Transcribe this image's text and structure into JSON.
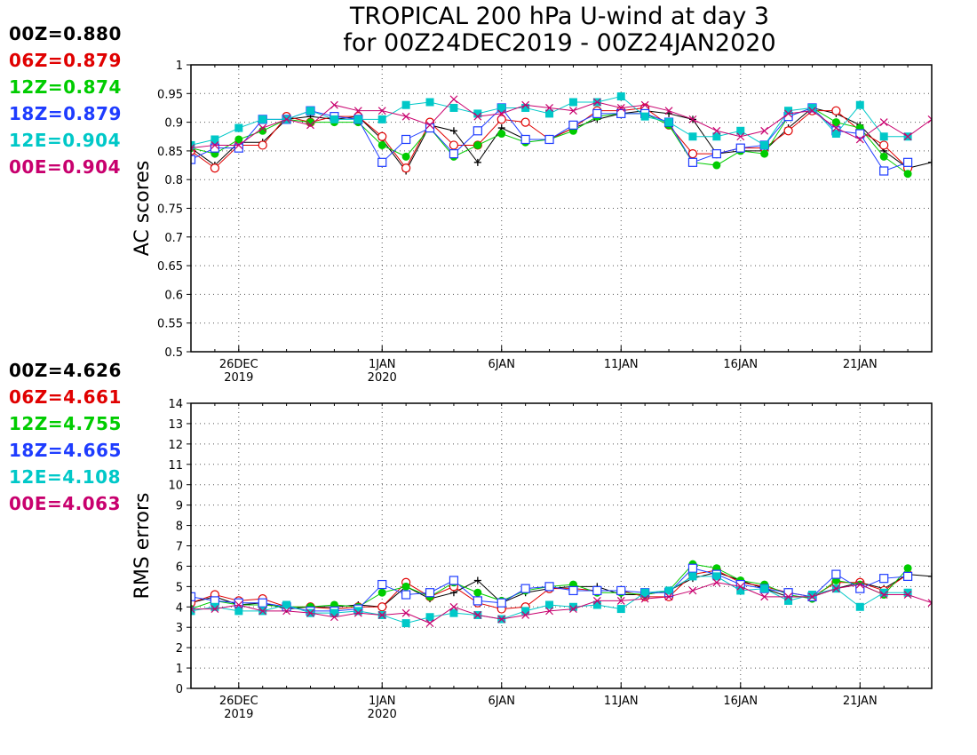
{
  "title": {
    "line1": "TROPICAL 200 hPa U-wind at day 3",
    "line2": "for 00Z24DEC2019 - 00Z24JAN2020"
  },
  "series_styles": [
    {
      "name": "00Z",
      "color": "#000000",
      "marker": "plus"
    },
    {
      "name": "06Z",
      "color": "#e00000",
      "marker": "open-circle"
    },
    {
      "name": "12Z",
      "color": "#00cc00",
      "marker": "filled-circle"
    },
    {
      "name": "18Z",
      "color": "#1e3cff",
      "marker": "open-square"
    },
    {
      "name": "12E",
      "color": "#00c8c8",
      "marker": "filled-square"
    },
    {
      "name": "00E",
      "color": "#c8006e",
      "marker": "x"
    }
  ],
  "x_ticks": [
    {
      "day": 2,
      "label": "26DEC",
      "year": "2019"
    },
    {
      "day": 8,
      "label": "1JAN",
      "year": "2020"
    },
    {
      "day": 13,
      "label": "6JAN",
      "year": ""
    },
    {
      "day": 18,
      "label": "11JAN",
      "year": ""
    },
    {
      "day": 23,
      "label": "16JAN",
      "year": ""
    },
    {
      "day": 28,
      "label": "21JAN",
      "year": ""
    }
  ],
  "chart_data": [
    {
      "type": "line",
      "ylabel": "AC scores",
      "ylim": [
        0.5,
        1.0
      ],
      "yticks": [
        "0.5",
        "0.55",
        "0.6",
        "0.65",
        "0.7",
        "0.75",
        "0.8",
        "0.85",
        "0.9",
        "0.95",
        "1"
      ],
      "x_dates": [
        "24DEC2019",
        "25DEC",
        "26DEC",
        "27DEC",
        "28DEC",
        "29DEC",
        "30DEC",
        "31DEC",
        "1JAN2020",
        "2JAN",
        "3JAN",
        "4JAN",
        "5JAN",
        "6JAN",
        "7JAN",
        "8JAN",
        "9JAN",
        "10JAN",
        "11JAN",
        "12JAN",
        "13JAN",
        "14JAN",
        "15JAN",
        "16JAN",
        "17JAN",
        "18JAN",
        "19JAN",
        "20JAN",
        "21JAN",
        "22JAN",
        "23JAN",
        "24JAN"
      ],
      "grid": true,
      "legend": [
        {
          "label": "00Z=0.880"
        },
        {
          "label": "06Z=0.879"
        },
        {
          "label": "12Z=0.874"
        },
        {
          "label": "18Z=0.879"
        },
        {
          "label": "12E=0.904"
        },
        {
          "label": "00E=0.904"
        }
      ],
      "series": [
        {
          "name": "00Z",
          "values": [
            0.855,
            0.825,
            0.865,
            0.865,
            0.905,
            0.91,
            0.905,
            0.91,
            0.87,
            0.815,
            0.895,
            0.885,
            0.83,
            0.89,
            0.87,
            0.87,
            0.89,
            0.905,
            0.915,
            0.92,
            0.915,
            0.905,
            0.845,
            0.85,
            0.85,
            0.89,
            0.925,
            0.915,
            0.895,
            0.85,
            0.82,
            0.83
          ]
        },
        {
          "name": "06Z",
          "values": [
            0.85,
            0.82,
            0.86,
            0.86,
            0.91,
            0.9,
            0.91,
            0.91,
            0.875,
            0.82,
            0.9,
            0.86,
            0.86,
            0.905,
            0.9,
            0.87,
            0.89,
            0.92,
            0.92,
            0.925,
            0.895,
            0.845,
            0.845,
            0.855,
            0.855,
            0.885,
            0.92,
            0.92,
            0.885,
            0.86,
            0.82,
            null
          ]
        },
        {
          "name": "12Z",
          "values": [
            0.855,
            0.845,
            0.87,
            0.885,
            0.905,
            0.9,
            0.9,
            0.9,
            0.86,
            0.84,
            0.89,
            0.84,
            0.86,
            0.88,
            0.865,
            0.87,
            0.885,
            0.91,
            0.915,
            0.915,
            0.895,
            0.83,
            0.825,
            0.85,
            0.845,
            0.91,
            0.925,
            0.9,
            0.89,
            0.84,
            0.81,
            null
          ]
        },
        {
          "name": "18Z",
          "values": [
            0.835,
            0.855,
            0.855,
            0.905,
            0.905,
            0.92,
            0.91,
            0.905,
            0.83,
            0.87,
            0.89,
            0.845,
            0.885,
            0.925,
            0.87,
            0.87,
            0.895,
            0.915,
            0.915,
            0.915,
            0.9,
            0.83,
            0.845,
            0.855,
            0.86,
            0.91,
            0.925,
            0.885,
            0.88,
            0.815,
            0.83,
            null
          ]
        },
        {
          "name": "12E",
          "values": [
            0.86,
            0.87,
            0.89,
            0.905,
            0.905,
            0.92,
            0.905,
            0.905,
            0.905,
            0.93,
            0.935,
            0.925,
            0.915,
            0.925,
            0.925,
            0.915,
            0.935,
            0.935,
            0.945,
            0.91,
            0.9,
            0.875,
            0.875,
            0.885,
            0.86,
            0.92,
            0.925,
            0.88,
            0.93,
            0.875,
            0.875,
            null
          ]
        },
        {
          "name": "00E",
          "values": [
            0.855,
            0.86,
            0.86,
            0.89,
            0.905,
            0.895,
            0.93,
            0.92,
            0.92,
            0.91,
            0.895,
            0.94,
            0.91,
            0.915,
            0.93,
            0.925,
            0.92,
            0.935,
            0.925,
            0.93,
            0.92,
            0.905,
            0.885,
            0.875,
            0.885,
            0.915,
            0.92,
            0.89,
            0.87,
            0.9,
            0.875,
            0.905
          ]
        }
      ]
    },
    {
      "type": "line",
      "ylabel": "RMS errors",
      "ylim": [
        0,
        14
      ],
      "yticks": [
        "0",
        "1",
        "2",
        "3",
        "4",
        "5",
        "6",
        "7",
        "8",
        "9",
        "10",
        "11",
        "12",
        "13",
        "14"
      ],
      "x_dates": [
        "24DEC2019",
        "25DEC",
        "26DEC",
        "27DEC",
        "28DEC",
        "29DEC",
        "30DEC",
        "31DEC",
        "1JAN2020",
        "2JAN",
        "3JAN",
        "4JAN",
        "5JAN",
        "6JAN",
        "7JAN",
        "8JAN",
        "9JAN",
        "10JAN",
        "11JAN",
        "12JAN",
        "13JAN",
        "14JAN",
        "15JAN",
        "16JAN",
        "17JAN",
        "18JAN",
        "19JAN",
        "20JAN",
        "21JAN",
        "22JAN",
        "23JAN",
        "24JAN"
      ],
      "grid": true,
      "legend": [
        {
          "label": "00Z=4.626"
        },
        {
          "label": "06Z=4.661"
        },
        {
          "label": "12Z=4.755"
        },
        {
          "label": "18Z=4.665"
        },
        {
          "label": "12E=4.108"
        },
        {
          "label": "00E=4.063"
        }
      ],
      "series": [
        {
          "name": "00Z",
          "values": [
            4.2,
            4.5,
            4.1,
            4.2,
            3.9,
            4.0,
            4.0,
            4.1,
            4.0,
            5.0,
            4.4,
            4.7,
            5.3,
            4.2,
            4.7,
            4.9,
            5.0,
            5.0,
            4.6,
            4.6,
            4.8,
            5.4,
            5.7,
            5.3,
            4.9,
            4.5,
            4.5,
            4.9,
            5.2,
            4.9,
            5.6,
            5.5
          ]
        },
        {
          "name": "06Z",
          "values": [
            4.2,
            4.6,
            4.3,
            4.4,
            4.0,
            4.0,
            3.9,
            4.0,
            4.0,
            5.2,
            4.5,
            5.0,
            4.2,
            3.9,
            4.0,
            4.9,
            4.9,
            4.8,
            4.8,
            4.5,
            4.5,
            5.6,
            5.8,
            5.2,
            5.0,
            4.7,
            4.5,
            5.2,
            5.2,
            4.8,
            5.6,
            null
          ]
        },
        {
          "name": "12Z",
          "values": [
            3.9,
            4.3,
            4.1,
            4.1,
            4.0,
            4.0,
            4.1,
            4.0,
            4.7,
            5.0,
            4.5,
            5.2,
            4.7,
            4.3,
            4.8,
            5.0,
            5.1,
            4.7,
            4.7,
            4.6,
            4.8,
            6.1,
            5.9,
            5.3,
            5.1,
            4.6,
            4.4,
            5.3,
            5.1,
            4.6,
            5.9,
            null
          ]
        },
        {
          "name": "18Z",
          "values": [
            4.5,
            4.3,
            4.2,
            4.2,
            4.0,
            3.8,
            3.8,
            3.9,
            5.1,
            4.6,
            4.7,
            5.3,
            4.3,
            4.2,
            4.9,
            5.0,
            4.8,
            4.8,
            4.8,
            4.7,
            4.7,
            5.9,
            5.6,
            5.1,
            4.9,
            4.7,
            4.5,
            5.6,
            4.9,
            5.4,
            5.5,
            null
          ]
        },
        {
          "name": "12E",
          "values": [
            3.8,
            4.0,
            3.8,
            3.8,
            4.1,
            3.7,
            3.7,
            3.8,
            3.6,
            3.2,
            3.5,
            3.7,
            3.6,
            3.4,
            3.8,
            4.1,
            4.0,
            4.1,
            3.9,
            4.7,
            4.8,
            5.5,
            5.5,
            4.8,
            4.9,
            4.3,
            4.6,
            4.9,
            4.0,
            4.7,
            4.7,
            null
          ]
        },
        {
          "name": "00E",
          "values": [
            3.9,
            3.9,
            4.1,
            3.8,
            3.8,
            3.7,
            3.5,
            3.7,
            3.6,
            3.7,
            3.2,
            4.0,
            3.6,
            3.4,
            3.6,
            3.8,
            3.9,
            4.3,
            4.3,
            4.4,
            4.5,
            4.8,
            5.2,
            5.0,
            4.5,
            4.5,
            4.5,
            4.9,
            5.1,
            4.6,
            4.6,
            4.2
          ]
        }
      ]
    }
  ]
}
